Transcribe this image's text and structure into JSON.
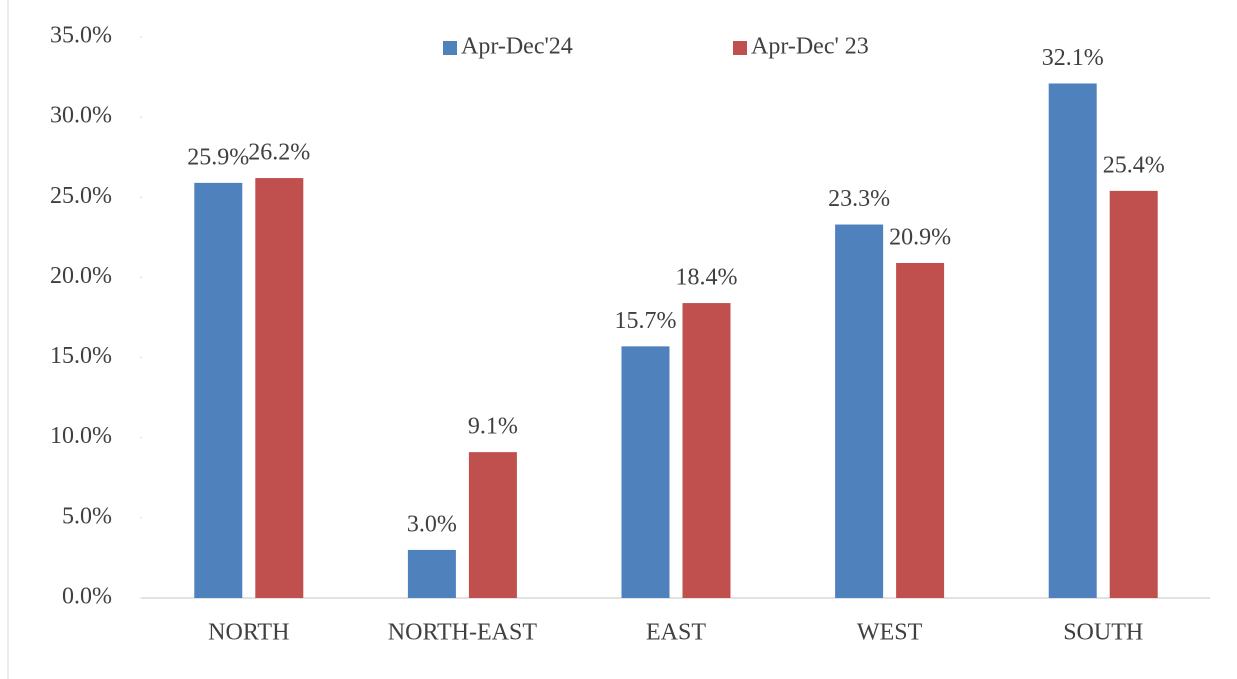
{
  "chart_data": {
    "type": "bar",
    "categories": [
      "NORTH",
      "NORTH-EAST",
      "EAST",
      "WEST",
      "SOUTH"
    ],
    "series": [
      {
        "name": "Apr-Dec'24",
        "color": "#4f81bd",
        "values": [
          25.9,
          3.0,
          15.7,
          23.3,
          32.1
        ],
        "value_labels": [
          "25.9%",
          "3.0%",
          "15.7%",
          "23.3%",
          "32.1%"
        ]
      },
      {
        "name": "Apr-Dec' 23",
        "color": "#c0504d",
        "values": [
          26.2,
          9.1,
          18.4,
          20.9,
          25.4
        ],
        "value_labels": [
          "26.2%",
          "9.1%",
          "18.4%",
          "20.9%",
          "25.4%"
        ]
      }
    ],
    "ylim": [
      0,
      35
    ],
    "yticks": [
      {
        "value": 0,
        "label": "0.0%"
      },
      {
        "value": 5,
        "label": "5.0%"
      },
      {
        "value": 10,
        "label": "10.0%"
      },
      {
        "value": 15,
        "label": "15.0%"
      },
      {
        "value": 20,
        "label": "20.0%"
      },
      {
        "value": 25,
        "label": "25.0%"
      },
      {
        "value": 30,
        "label": "30.0%"
      },
      {
        "value": 35,
        "label": "35.0%"
      }
    ],
    "legend": "top"
  }
}
